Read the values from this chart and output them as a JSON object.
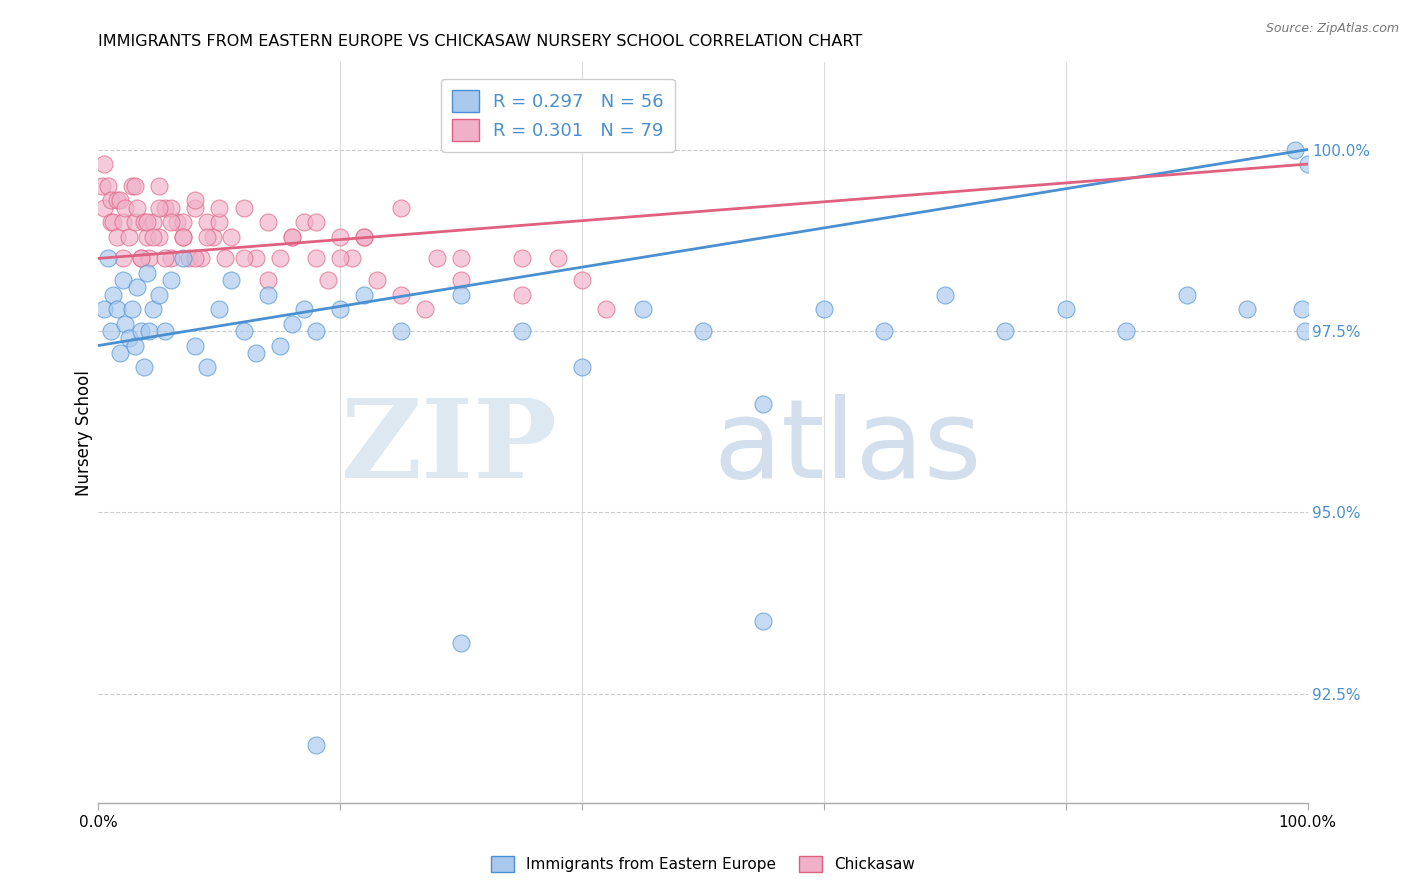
{
  "title": "IMMIGRANTS FROM EASTERN EUROPE VS CHICKASAW NURSERY SCHOOL CORRELATION CHART",
  "source": "Source: ZipAtlas.com",
  "ylabel": "Nursery School",
  "xlim": [
    0.0,
    100.0
  ],
  "ylim": [
    91.0,
    101.2
  ],
  "blue_R": 0.297,
  "blue_N": 56,
  "pink_R": 0.301,
  "pink_N": 79,
  "blue_color": "#a8c8ee",
  "pink_color": "#f0b0c8",
  "blue_line_color": "#4a90d0",
  "pink_line_color": "#e06080",
  "legend_text_color": "#4a90d0",
  "blue_scatter_x": [
    0.5,
    0.8,
    1.0,
    1.2,
    1.5,
    1.8,
    2.0,
    2.2,
    2.5,
    2.8,
    3.0,
    3.2,
    3.5,
    3.8,
    4.0,
    4.2,
    4.5,
    5.0,
    5.5,
    6.0,
    7.0,
    8.0,
    9.0,
    10.0,
    11.0,
    12.0,
    13.0,
    14.0,
    15.0,
    16.0,
    17.0,
    18.0,
    20.0,
    22.0,
    25.0,
    30.0,
    35.0,
    40.0,
    45.0,
    50.0,
    55.0,
    60.0,
    65.0,
    70.0,
    75.0,
    80.0,
    85.0,
    90.0,
    95.0,
    99.0,
    99.5,
    99.8,
    100.0,
    55.0,
    30.0,
    18.0
  ],
  "blue_scatter_y": [
    97.8,
    98.5,
    97.5,
    98.0,
    97.8,
    97.2,
    98.2,
    97.6,
    97.4,
    97.8,
    97.3,
    98.1,
    97.5,
    97.0,
    98.3,
    97.5,
    97.8,
    98.0,
    97.5,
    98.2,
    98.5,
    97.3,
    97.0,
    97.8,
    98.2,
    97.5,
    97.2,
    98.0,
    97.3,
    97.6,
    97.8,
    97.5,
    97.8,
    98.0,
    97.5,
    98.0,
    97.5,
    97.0,
    97.8,
    97.5,
    96.5,
    97.8,
    97.5,
    98.0,
    97.5,
    97.8,
    97.5,
    98.0,
    97.8,
    100.0,
    97.8,
    97.5,
    99.8,
    93.5,
    93.2,
    91.8
  ],
  "pink_scatter_x": [
    0.3,
    0.5,
    0.5,
    0.8,
    1.0,
    1.0,
    1.2,
    1.5,
    1.5,
    1.8,
    2.0,
    2.0,
    2.2,
    2.5,
    2.8,
    3.0,
    3.0,
    3.2,
    3.5,
    3.8,
    4.0,
    4.2,
    4.5,
    5.0,
    5.5,
    6.0,
    6.5,
    7.0,
    7.5,
    8.0,
    8.5,
    9.0,
    9.5,
    10.0,
    10.5,
    11.0,
    12.0,
    13.0,
    14.0,
    15.0,
    16.0,
    17.0,
    18.0,
    19.0,
    20.0,
    21.0,
    22.0,
    23.0,
    25.0,
    27.0,
    30.0,
    35.0,
    38.0,
    40.0,
    42.0,
    5.0,
    6.0,
    7.0,
    8.0,
    9.0,
    3.5,
    4.0,
    4.5,
    5.0,
    5.5,
    6.0,
    7.0,
    8.0,
    10.0,
    12.0,
    14.0,
    16.0,
    18.0,
    20.0,
    22.0,
    25.0,
    28.0,
    30.0,
    35.0
  ],
  "pink_scatter_y": [
    99.5,
    99.2,
    99.8,
    99.5,
    99.0,
    99.3,
    99.0,
    98.8,
    99.3,
    99.3,
    98.5,
    99.0,
    99.2,
    98.8,
    99.5,
    99.0,
    99.5,
    99.2,
    98.5,
    99.0,
    98.8,
    98.5,
    99.0,
    98.8,
    99.2,
    98.5,
    99.0,
    98.8,
    98.5,
    99.2,
    98.5,
    99.0,
    98.8,
    99.0,
    98.5,
    98.8,
    99.2,
    98.5,
    98.2,
    98.5,
    98.8,
    99.0,
    98.5,
    98.2,
    98.8,
    98.5,
    98.8,
    98.2,
    98.0,
    97.8,
    98.5,
    98.0,
    98.5,
    98.2,
    97.8,
    99.5,
    99.2,
    99.0,
    99.3,
    98.8,
    98.5,
    99.0,
    98.8,
    99.2,
    98.5,
    99.0,
    98.8,
    98.5,
    99.2,
    98.5,
    99.0,
    98.8,
    99.0,
    98.5,
    98.8,
    99.2,
    98.5,
    98.2,
    98.5
  ]
}
